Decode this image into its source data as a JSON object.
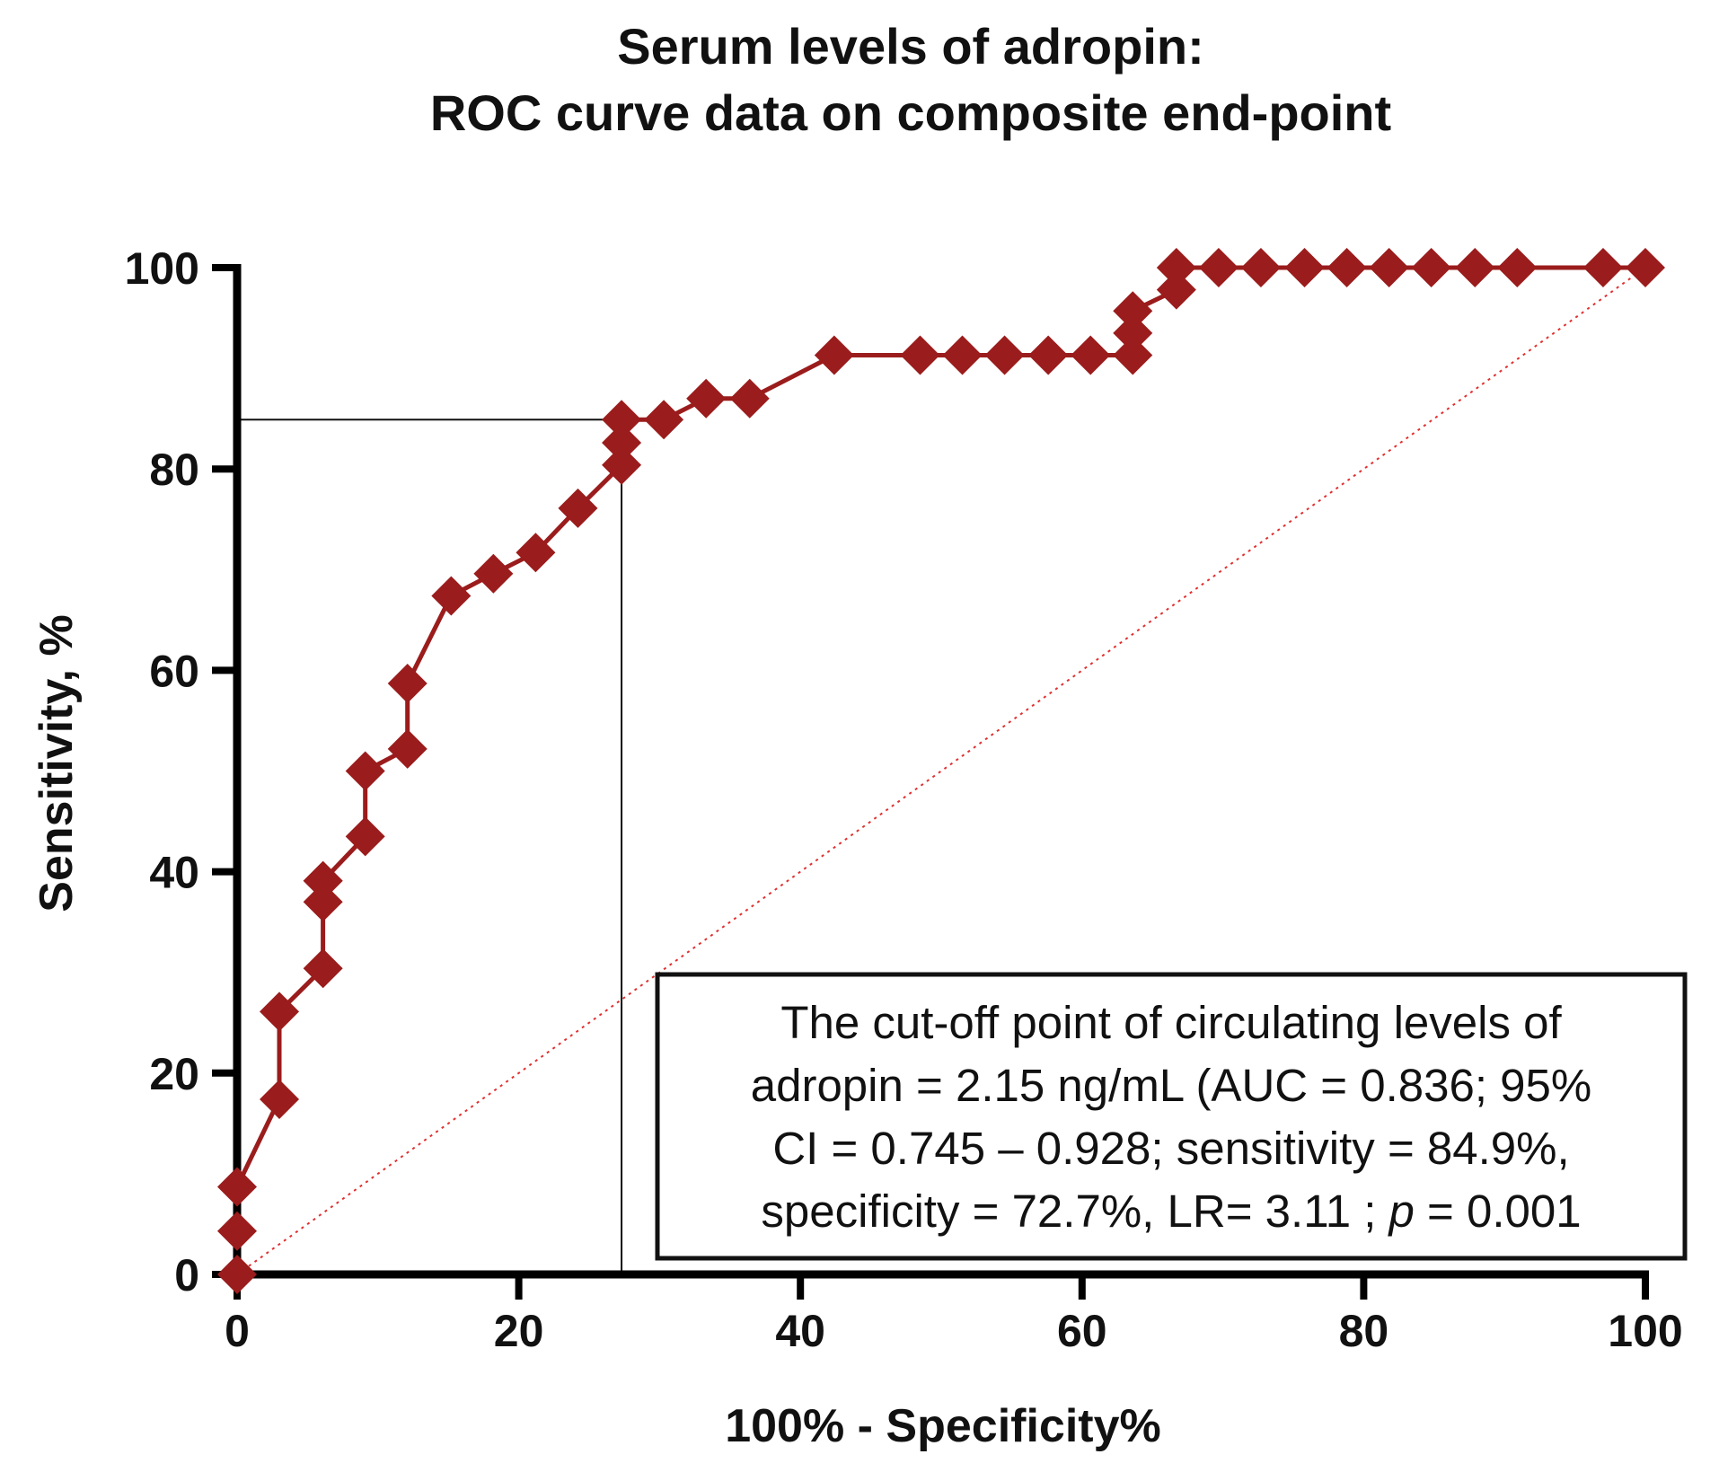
{
  "chart_data": {
    "type": "line",
    "title": [
      "Serum levels of adropin:",
      "ROC curve data on composite end-point"
    ],
    "xlabel": "100% - Specificity%",
    "ylabel": "Sensitivity, %",
    "xlim": [
      0,
      100
    ],
    "ylim": [
      0,
      100
    ],
    "xticks": [
      0,
      20,
      40,
      60,
      80,
      100
    ],
    "yticks": [
      0,
      20,
      40,
      60,
      80,
      100
    ],
    "grid": false,
    "series": [
      {
        "name": "ROC curve",
        "color": "#9b1c1c",
        "marker": "diamond",
        "x": [
          0,
          0,
          0,
          3.0,
          3.0,
          6.1,
          6.1,
          6.1,
          6.1,
          9.1,
          9.1,
          12.1,
          12.1,
          15.2,
          18.2,
          21.2,
          24.2,
          27.3,
          27.3,
          27.3,
          30.3,
          33.3,
          36.4,
          42.4,
          48.5,
          51.5,
          54.5,
          57.6,
          60.6,
          63.6,
          63.6,
          63.6,
          66.7,
          66.7,
          69.7,
          72.7,
          75.8,
          78.8,
          81.8,
          84.8,
          87.9,
          90.9,
          97.0,
          100
        ],
        "y": [
          0,
          4.3,
          8.7,
          17.4,
          26.1,
          30.4,
          37.0,
          39.1,
          39.1,
          43.5,
          50.0,
          52.2,
          58.7,
          67.4,
          69.6,
          71.7,
          76.1,
          80.4,
          82.6,
          84.9,
          84.9,
          87.0,
          87.0,
          91.3,
          91.3,
          91.3,
          91.3,
          91.3,
          91.3,
          91.3,
          93.5,
          95.7,
          97.8,
          100,
          100,
          100,
          100,
          100,
          100,
          100,
          100,
          100,
          100,
          100
        ]
      },
      {
        "name": "Reference line",
        "color": "#e03030",
        "style": "dotted",
        "x": [
          0,
          100
        ],
        "y": [
          0,
          100
        ]
      }
    ],
    "cutoff": {
      "x": 27.3,
      "y": 84.9
    },
    "annotation": [
      "The cut-off point of circulating levels of",
      "adropin = 2.15 ng/mL (AUC = 0.836; 95%",
      "CI = 0.745 – 0.928; sensitivity = 84.9%,",
      "specificity = 72.7%, LR= 3.11 ;",
      "p",
      " = 0.001"
    ]
  }
}
